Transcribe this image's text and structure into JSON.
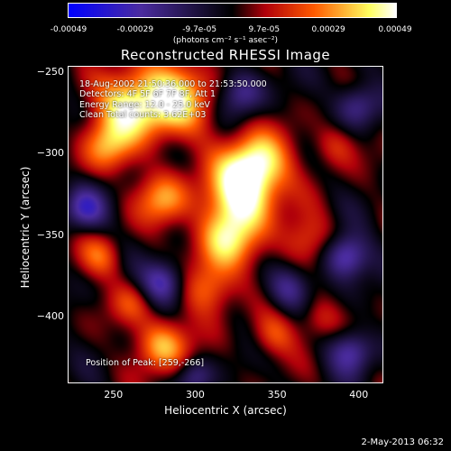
{
  "colorbar": {
    "ticks": [
      "-0.00049",
      "-0.00029",
      "-9.7e-05",
      "9.7e-05",
      "0.00029",
      "0.00049"
    ],
    "units": "(photons cm⁻² s⁻¹ asec⁻²)",
    "colors": [
      "#0000ff",
      "#4b2ca0",
      "#000000",
      "#b0000a",
      "#ff5a00",
      "#ffff60",
      "#ffffff"
    ]
  },
  "chart_data": {
    "type": "heatmap",
    "title": "Reconstructed RHESSI Image",
    "xlabel": "Heliocentric X (arcsec)",
    "ylabel": "Heliocentric Y (arcsec)",
    "xlim": [
      222,
      415
    ],
    "ylim": [
      -441,
      -246
    ],
    "xticks": [
      250,
      300,
      350,
      400
    ],
    "yticks": [
      -250,
      -300,
      -350,
      -400
    ],
    "zlim": [
      -0.00049,
      0.00049
    ],
    "peak": [
      259,
      -266
    ]
  },
  "annotations": {
    "time_range": "18-Aug-2002 21:50:36.000 to 21:53:50.000",
    "detectors": "Detectors: 4F 5F 6F 7F 8F, Att 1",
    "energy": "Energy Range: 12.0 - 25.0 keV",
    "clean": "Clean     Total counts: 3.62E+03",
    "peak": "Position of Peak: [259,-266]"
  },
  "footer": "2-May-2013 06:32"
}
